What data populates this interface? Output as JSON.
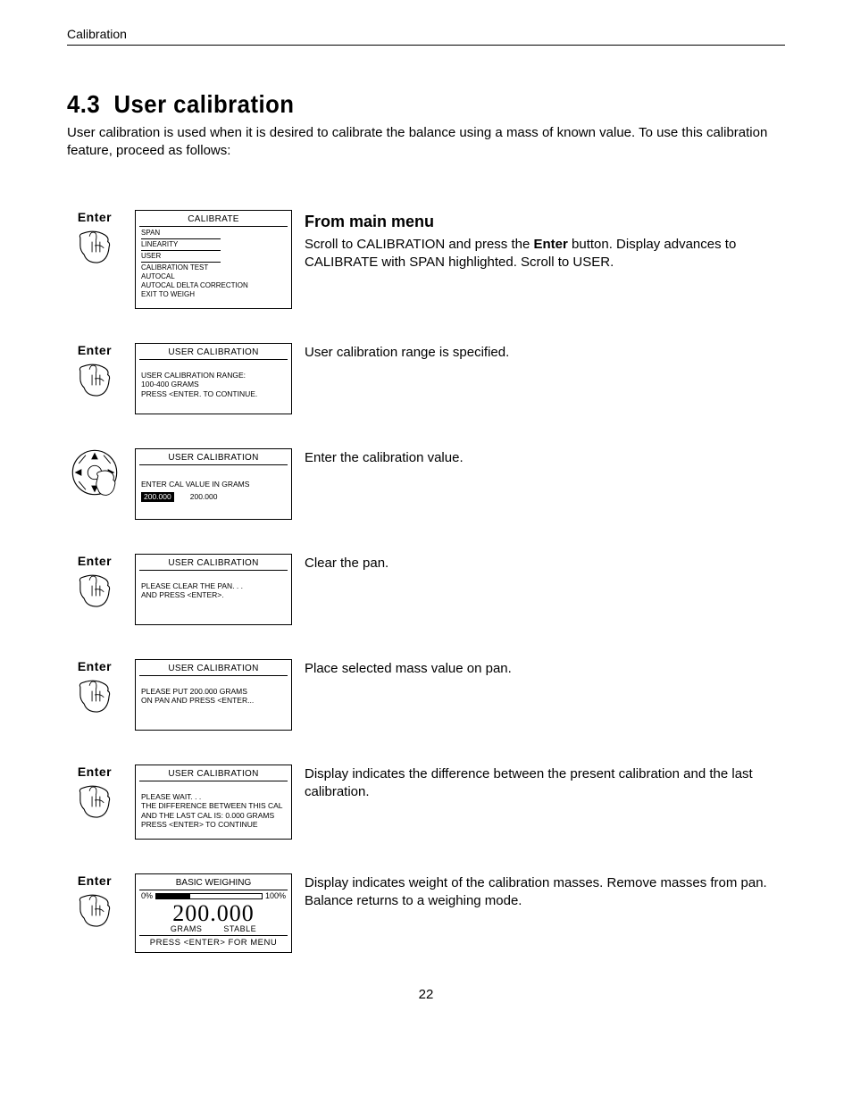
{
  "header": "Calibration",
  "section": {
    "number": "4.3",
    "title": "User calibration",
    "intro": "User calibration is used when it is desired to calibrate the balance using a mass of known value.  To use this calibration feature, proceed as follows:"
  },
  "steps": [
    {
      "button": "Enter",
      "screen_title": "CALIBRATE",
      "screen_type": "menu",
      "menu": [
        "SPAN",
        "LINEARITY",
        "USER",
        "CALIBRATION TEST",
        "AUTOCAL",
        "AUTOCAL DELTA CORRECTION",
        "EXIT TO WEIGH"
      ],
      "highlight": "USER",
      "desc_title": "From main menu",
      "desc": "Scroll to CALIBRATION and press the Enter button.  Display advances to CALIBRATE with SPAN highlighted.  Scroll to USER.",
      "bold_word": "Enter"
    },
    {
      "button": "Enter",
      "screen_title": "USER CALIBRATION",
      "screen_type": "text",
      "lines": [
        "USER CALIBRATION RANGE:",
        "100-400 GRAMS",
        "PRESS <ENTER. TO CONTINUE."
      ],
      "desc": "User calibration range is specified."
    },
    {
      "button": "dpad",
      "screen_title": "USER CALIBRATION",
      "screen_type": "value",
      "prompt": "ENTER CAL VALUE IN GRAMS",
      "value_hl": "200.000",
      "value_plain": "200.000",
      "desc": "Enter the calibration value."
    },
    {
      "button": "Enter",
      "screen_title": "USER CALIBRATION",
      "screen_type": "text",
      "lines": [
        "PLEASE CLEAR THE PAN. . .",
        "    AND PRESS <ENTER>."
      ],
      "desc": "Clear the pan."
    },
    {
      "button": "Enter",
      "screen_title": "USER CALIBRATION",
      "screen_type": "text",
      "lines": [
        "PLEASE PUT 200.000 GRAMS",
        "ON PAN AND PRESS <ENTER..."
      ],
      "desc": "Place selected mass value on pan."
    },
    {
      "button": "Enter",
      "screen_title": "USER CALIBRATION",
      "screen_type": "text",
      "lines": [
        "PLEASE WAIT. . .",
        "THE DIFFERENCE BETWEEN THIS CAL",
        "AND THE LAST CAL IS: 0.000 GRAMS",
        "PRESS <ENTER> TO CONTINUE"
      ],
      "desc": "Display indicates the difference between the present calibration and the last calibration."
    },
    {
      "button": "Enter",
      "screen_title": "BASIC WEIGHING",
      "screen_type": "weighing",
      "pct_left": "0%",
      "pct_right": "100%",
      "pct_fill": 32,
      "big_value": "200.000",
      "unit_left": "GRAMS",
      "unit_right": "STABLE",
      "footer": "PRESS <ENTER> FOR MENU",
      "desc": "Display indicates weight of the calibration masses.  Remove masses from pan.  Balance returns to a weighing mode."
    }
  ],
  "page_number": "22"
}
